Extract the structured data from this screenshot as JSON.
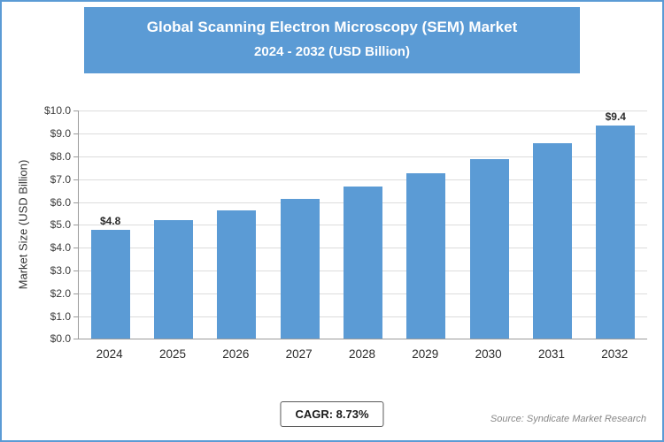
{
  "header": {
    "title_line1": "Global Scanning Electron Microscopy (SEM) Market",
    "title_line2": "2024 - 2032 (USD Billion)"
  },
  "chart_data": {
    "type": "bar",
    "title": "Global Scanning Electron Microscopy (SEM) Market 2024 - 2032 (USD Billion)",
    "categories": [
      "2024",
      "2025",
      "2026",
      "2027",
      "2028",
      "2029",
      "2030",
      "2031",
      "2032"
    ],
    "values": [
      4.8,
      5.2,
      5.65,
      6.15,
      6.7,
      7.25,
      7.9,
      8.6,
      9.4
    ],
    "value_labels": [
      "$4.8",
      "",
      "",
      "",
      "",
      "",
      "",
      "",
      "$9.4"
    ],
    "xlabel": "",
    "ylabel": "Market Size (USD Billion)",
    "ylim": [
      0,
      10
    ],
    "ytick_step": 1,
    "ytick_prefix": "$",
    "ytick_decimals": 1,
    "grid": true,
    "legend": "none",
    "bar_color": "#5B9BD5"
  },
  "footer": {
    "cagr_label": "CAGR: 8.73%",
    "source": "Source: Syndicate Market Research"
  },
  "colors": {
    "accent": "#5B9BD5",
    "grid": "#DCDCDC",
    "axis": "#9B9B9B",
    "text": "#2B2B2B",
    "source_text": "#878787"
  }
}
